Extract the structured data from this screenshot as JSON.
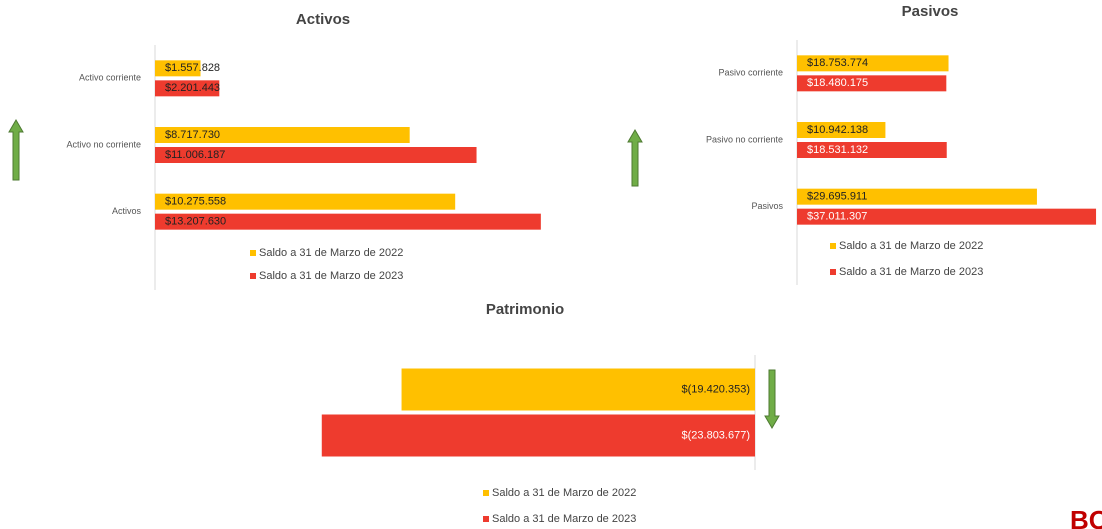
{
  "chart_data": [
    {
      "type": "bar",
      "orientation": "horizontal",
      "title": "Activos",
      "categories": [
        "Activo corriente",
        "Activo no corriente",
        "Activos"
      ],
      "series": [
        {
          "name": "Saldo a 31 de Marzo de 2022",
          "color": "#ffc000",
          "values": [
            1557828,
            8717730,
            10275558
          ],
          "value_labels": [
            "$1.557.828",
            "$8.717.730",
            "$10.275.558"
          ]
        },
        {
          "name": "Saldo a 31 de Marzo de 2023",
          "color": "#ee3b2e",
          "values": [
            2201443,
            11006187,
            13207630
          ],
          "value_labels": [
            "$2.201.443",
            "$11.006.187",
            "$13.207.630"
          ]
        }
      ],
      "xlim": [
        0,
        14000000
      ]
    },
    {
      "type": "bar",
      "orientation": "horizontal",
      "title": "Pasivos",
      "categories": [
        "Pasivo corriente",
        "Pasivo no corriente",
        "Pasivos"
      ],
      "series": [
        {
          "name": "Saldo a 31 de Marzo de 2022",
          "color": "#ffc000",
          "values": [
            18753774,
            10942138,
            29695911
          ],
          "value_labels": [
            "$18.753.774",
            "$10.942.138",
            "$29.695.911"
          ]
        },
        {
          "name": "Saldo a 31 de Marzo de 2023",
          "color": "#ee3b2e",
          "values": [
            18480175,
            18531132,
            37011307
          ],
          "value_labels": [
            "$18.480.175",
            "$18.531.132",
            "$37.011.307"
          ]
        }
      ],
      "xlim": [
        0,
        37500000
      ]
    },
    {
      "type": "bar",
      "orientation": "horizontal",
      "title": "Patrimonio",
      "categories": [
        null
      ],
      "series": [
        {
          "name": "Saldo a 31 de Marzo de 2022",
          "color": "#ffc000",
          "values": [
            -19420353
          ],
          "value_labels": [
            "$(19.420.353)"
          ]
        },
        {
          "name": "Saldo a 31 de Marzo de 2023",
          "color": "#ee3b2e",
          "values": [
            -23803677
          ],
          "value_labels": [
            "$(23.803.677)"
          ]
        }
      ],
      "xlim": [
        -25000000,
        0
      ]
    }
  ],
  "logo": "BOG"
}
